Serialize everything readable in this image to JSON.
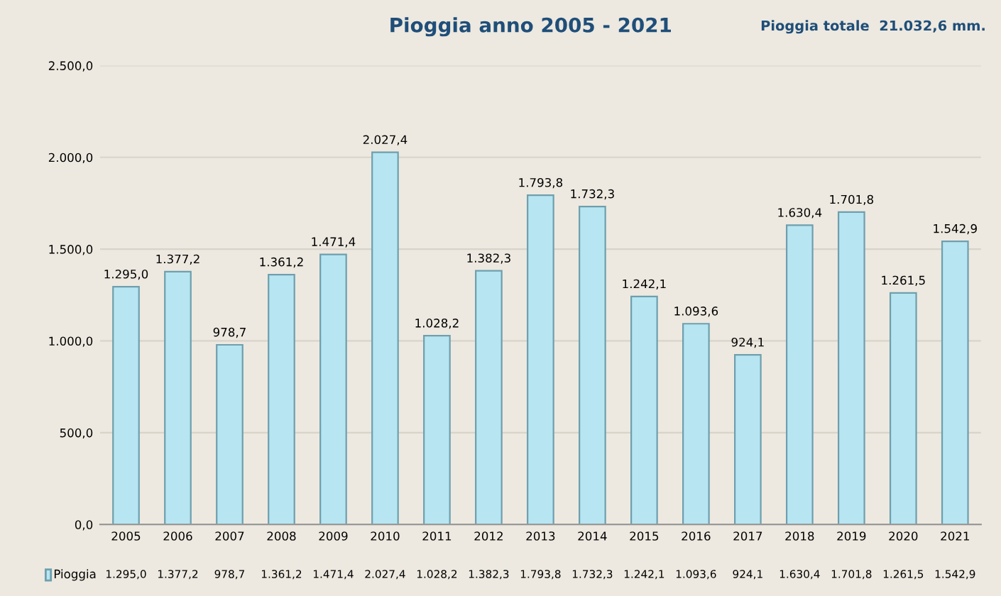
{
  "chart_data": {
    "type": "bar",
    "title": "Pioggia anno 2005 - 2021",
    "annotations": [
      "Pioggia totale  21.032,6 mm."
    ],
    "categories": [
      "2005",
      "2006",
      "2007",
      "2008",
      "2009",
      "2010",
      "2011",
      "2012",
      "2013",
      "2014",
      "2015",
      "2016",
      "2017",
      "2018",
      "2019",
      "2020",
      "2021"
    ],
    "series": [
      {
        "name": "Pioggia",
        "color": "#b7e6f2",
        "values": [
          1295.0,
          1377.2,
          978.7,
          1361.2,
          1471.4,
          2027.4,
          1028.2,
          1382.3,
          1793.8,
          1732.3,
          1242.1,
          1093.6,
          924.1,
          1630.4,
          1701.8,
          1261.5,
          1542.9
        ],
        "value_labels": [
          "1.295,0",
          "1.377,2",
          "978,7",
          "1.361,2",
          "1.471,4",
          "2.027,4",
          "1.028,2",
          "1.382,3",
          "1.793,8",
          "1.732,3",
          "1.242,1",
          "1.093,6",
          "924,1",
          "1.630,4",
          "1.701,8",
          "1.261,5",
          "1.542,9"
        ]
      }
    ],
    "ylim": [
      0,
      2500
    ],
    "yticks": [
      {
        "value": 0,
        "label": "0,0"
      },
      {
        "value": 500,
        "label": "500,0"
      },
      {
        "value": 1000,
        "label": "1.000,0"
      },
      {
        "value": 1500,
        "label": "1.500,0"
      },
      {
        "value": 2000,
        "label": "2.000,0"
      },
      {
        "value": 2500,
        "label": "2.500,0"
      }
    ],
    "grid": "y",
    "legend": "bottom"
  }
}
